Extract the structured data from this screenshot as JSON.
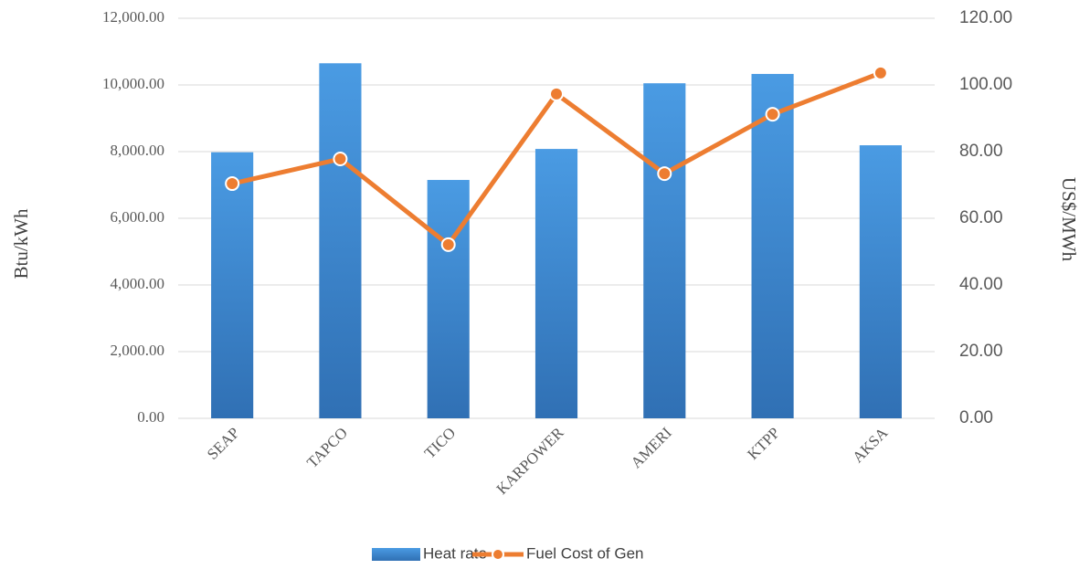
{
  "chart_data": {
    "type": "bar-line",
    "categories": [
      "SEAP",
      "TAPCO",
      "TICO",
      "KARPOWER",
      "AMERI",
      "KTPP",
      "AKSA"
    ],
    "series": [
      {
        "name": "Heat rate",
        "type": "bar",
        "color": "#4a9be3",
        "values": [
          7980,
          10650,
          7150,
          8080,
          10050,
          10330,
          8190
        ]
      },
      {
        "name": "Fuel Cost of Gen",
        "type": "line",
        "axis": "y2",
        "color": "#ed7d31",
        "values": [
          70.4,
          77.8,
          52.1,
          97.3,
          73.4,
          91.2,
          103.6
        ]
      }
    ],
    "ylabel": "Btu/kWh",
    "y2label": "US$/MWh",
    "ylim": [
      0,
      12000
    ],
    "yticks": [
      {
        "value": 0,
        "label": "0.00"
      },
      {
        "value": 2000,
        "label": "2,000.00"
      },
      {
        "value": 4000,
        "label": "4,000.00"
      },
      {
        "value": 6000,
        "label": "6,000.00"
      },
      {
        "value": 8000,
        "label": "8,000.00"
      },
      {
        "value": 10000,
        "label": "10,000.00"
      },
      {
        "value": 12000,
        "label": "12,000.00"
      }
    ],
    "y2lim": [
      0,
      120
    ],
    "y2ticks": [
      {
        "value": 0,
        "label": "0.00"
      },
      {
        "value": 20,
        "label": "20.00"
      },
      {
        "value": 40,
        "label": "40.00"
      },
      {
        "value": 60,
        "label": "60.00"
      },
      {
        "value": 80,
        "label": "80.00"
      },
      {
        "value": 100,
        "label": "100.00"
      },
      {
        "value": 120,
        "label": "120.00"
      }
    ],
    "grid": true,
    "legend": "bottom"
  }
}
